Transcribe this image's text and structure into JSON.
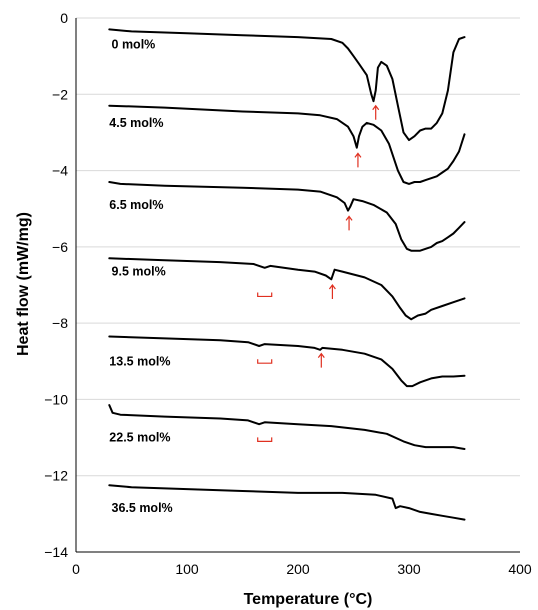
{
  "chart_data": {
    "type": "line",
    "xlabel": "Temperature (°C)",
    "ylabel": "Heat flow (mW/mg)",
    "xlim": [
      0,
      400
    ],
    "ylim": [
      -14,
      0
    ],
    "xticks": [
      0,
      100,
      200,
      300,
      400
    ],
    "yticks": [
      0,
      -2,
      -4,
      -6,
      -8,
      -10,
      -12,
      -14
    ],
    "grid": "horizontal",
    "marker_color": "#e03020",
    "series": [
      {
        "name": "0 mol%",
        "label_at": [
          32,
          -0.7
        ],
        "points": [
          [
            30,
            -0.3
          ],
          [
            50,
            -0.35
          ],
          [
            100,
            -0.4
          ],
          [
            150,
            -0.45
          ],
          [
            200,
            -0.5
          ],
          [
            230,
            -0.55
          ],
          [
            240,
            -0.65
          ],
          [
            245,
            -0.8
          ],
          [
            250,
            -1.0
          ],
          [
            255,
            -1.2
          ],
          [
            262,
            -1.5
          ],
          [
            266,
            -2.0
          ],
          [
            268,
            -2.18
          ],
          [
            270,
            -1.9
          ],
          [
            272,
            -1.3
          ],
          [
            275,
            -1.15
          ],
          [
            280,
            -1.25
          ],
          [
            285,
            -1.6
          ],
          [
            290,
            -2.3
          ],
          [
            295,
            -3.0
          ],
          [
            300,
            -3.2
          ],
          [
            305,
            -3.1
          ],
          [
            310,
            -2.95
          ],
          [
            315,
            -2.9
          ],
          [
            320,
            -2.9
          ],
          [
            325,
            -2.75
          ],
          [
            330,
            -2.5
          ],
          [
            335,
            -1.9
          ],
          [
            340,
            -0.9
          ],
          [
            345,
            -0.55
          ],
          [
            350,
            -0.5
          ]
        ]
      },
      {
        "name": "4.5 mol%",
        "label_at": [
          30,
          -2.75
        ],
        "points": [
          [
            30,
            -2.3
          ],
          [
            80,
            -2.35
          ],
          [
            150,
            -2.45
          ],
          [
            200,
            -2.5
          ],
          [
            220,
            -2.55
          ],
          [
            235,
            -2.65
          ],
          [
            245,
            -2.85
          ],
          [
            250,
            -3.1
          ],
          [
            253,
            -3.4
          ],
          [
            255,
            -3.1
          ],
          [
            258,
            -2.85
          ],
          [
            262,
            -2.75
          ],
          [
            268,
            -2.8
          ],
          [
            275,
            -2.95
          ],
          [
            282,
            -3.3
          ],
          [
            290,
            -4.0
          ],
          [
            295,
            -4.3
          ],
          [
            300,
            -4.35
          ],
          [
            305,
            -4.3
          ],
          [
            310,
            -4.3
          ],
          [
            315,
            -4.25
          ],
          [
            320,
            -4.2
          ],
          [
            325,
            -4.15
          ],
          [
            330,
            -4.05
          ],
          [
            335,
            -3.95
          ],
          [
            340,
            -3.75
          ],
          [
            345,
            -3.5
          ],
          [
            350,
            -3.05
          ]
        ]
      },
      {
        "name": "6.5 mol%",
        "label_at": [
          30,
          -4.9
        ],
        "points": [
          [
            30,
            -4.3
          ],
          [
            40,
            -4.35
          ],
          [
            80,
            -4.4
          ],
          [
            150,
            -4.45
          ],
          [
            200,
            -4.5
          ],
          [
            220,
            -4.55
          ],
          [
            235,
            -4.7
          ],
          [
            242,
            -4.85
          ],
          [
            245,
            -5.05
          ],
          [
            247,
            -4.95
          ],
          [
            250,
            -4.75
          ],
          [
            258,
            -4.8
          ],
          [
            268,
            -4.9
          ],
          [
            280,
            -5.1
          ],
          [
            288,
            -5.4
          ],
          [
            293,
            -5.8
          ],
          [
            298,
            -6.05
          ],
          [
            302,
            -6.1
          ],
          [
            310,
            -6.1
          ],
          [
            320,
            -6.0
          ],
          [
            325,
            -5.9
          ],
          [
            330,
            -5.85
          ],
          [
            335,
            -5.75
          ],
          [
            340,
            -5.65
          ],
          [
            345,
            -5.5
          ],
          [
            350,
            -5.35
          ]
        ]
      },
      {
        "name": "9.5 mol%",
        "label_at": [
          32,
          -6.65
        ],
        "points": [
          [
            30,
            -6.3
          ],
          [
            80,
            -6.35
          ],
          [
            130,
            -6.4
          ],
          [
            160,
            -6.45
          ],
          [
            170,
            -6.55
          ],
          [
            175,
            -6.5
          ],
          [
            200,
            -6.6
          ],
          [
            215,
            -6.65
          ],
          [
            225,
            -6.75
          ],
          [
            230,
            -6.85
          ],
          [
            233,
            -6.6
          ],
          [
            240,
            -6.65
          ],
          [
            260,
            -6.8
          ],
          [
            275,
            -7.0
          ],
          [
            285,
            -7.3
          ],
          [
            292,
            -7.6
          ],
          [
            297,
            -7.8
          ],
          [
            302,
            -7.9
          ],
          [
            308,
            -7.8
          ],
          [
            315,
            -7.75
          ],
          [
            320,
            -7.65
          ],
          [
            330,
            -7.55
          ],
          [
            340,
            -7.45
          ],
          [
            350,
            -7.35
          ]
        ]
      },
      {
        "name": "13.5 mol%",
        "label_at": [
          30,
          -9.0
        ],
        "points": [
          [
            30,
            -8.35
          ],
          [
            80,
            -8.4
          ],
          [
            130,
            -8.45
          ],
          [
            155,
            -8.5
          ],
          [
            165,
            -8.6
          ],
          [
            170,
            -8.55
          ],
          [
            200,
            -8.6
          ],
          [
            215,
            -8.65
          ],
          [
            220,
            -8.7
          ],
          [
            222,
            -8.65
          ],
          [
            240,
            -8.7
          ],
          [
            260,
            -8.8
          ],
          [
            275,
            -8.95
          ],
          [
            285,
            -9.2
          ],
          [
            293,
            -9.5
          ],
          [
            298,
            -9.65
          ],
          [
            303,
            -9.65
          ],
          [
            310,
            -9.55
          ],
          [
            320,
            -9.45
          ],
          [
            330,
            -9.4
          ],
          [
            340,
            -9.4
          ],
          [
            350,
            -9.38
          ]
        ]
      },
      {
        "name": "22.5 mol%",
        "label_at": [
          30,
          -11.0
        ],
        "points": [
          [
            30,
            -10.15
          ],
          [
            33,
            -10.35
          ],
          [
            40,
            -10.4
          ],
          [
            80,
            -10.45
          ],
          [
            130,
            -10.5
          ],
          [
            155,
            -10.55
          ],
          [
            165,
            -10.65
          ],
          [
            170,
            -10.6
          ],
          [
            200,
            -10.65
          ],
          [
            230,
            -10.7
          ],
          [
            260,
            -10.8
          ],
          [
            280,
            -10.9
          ],
          [
            295,
            -11.1
          ],
          [
            305,
            -11.2
          ],
          [
            315,
            -11.25
          ],
          [
            325,
            -11.25
          ],
          [
            340,
            -11.25
          ],
          [
            350,
            -11.3
          ]
        ]
      },
      {
        "name": "36.5 mol%",
        "label_at": [
          32,
          -12.85
        ],
        "points": [
          [
            30,
            -12.25
          ],
          [
            50,
            -12.3
          ],
          [
            100,
            -12.35
          ],
          [
            150,
            -12.4
          ],
          [
            200,
            -12.45
          ],
          [
            240,
            -12.45
          ],
          [
            270,
            -12.5
          ],
          [
            285,
            -12.6
          ],
          [
            288,
            -12.85
          ],
          [
            292,
            -12.8
          ],
          [
            300,
            -12.85
          ],
          [
            310,
            -12.95
          ],
          [
            320,
            -13.0
          ],
          [
            330,
            -13.05
          ],
          [
            340,
            -13.1
          ],
          [
            350,
            -13.15
          ]
        ]
      }
    ],
    "arrow_markers": [
      [
        270,
        -2.3
      ],
      [
        254,
        -3.55
      ],
      [
        246,
        -5.2
      ],
      [
        231,
        -7.0
      ],
      [
        221,
        -8.8
      ]
    ],
    "bracket_markers": [
      [
        170,
        -7.3
      ],
      [
        170,
        -9.05
      ],
      [
        170,
        -11.1
      ]
    ]
  }
}
